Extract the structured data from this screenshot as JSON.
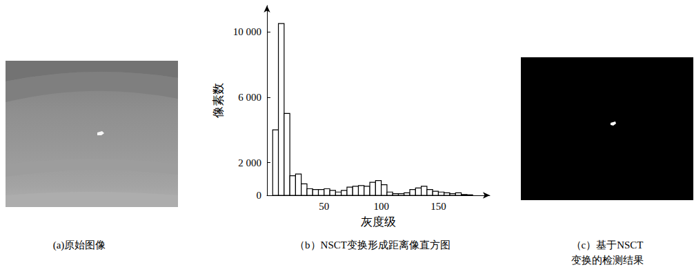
{
  "chart_data": {
    "type": "histogram",
    "xlabel": "灰度级",
    "ylabel": "像素数",
    "bins": [
      5,
      10,
      15,
      20,
      25,
      30,
      35,
      40,
      45,
      50,
      55,
      60,
      65,
      70,
      75,
      80,
      85,
      90,
      95,
      100,
      105,
      110,
      115,
      120,
      125,
      130,
      135,
      140,
      145,
      150,
      155,
      160,
      165,
      170,
      175,
      180
    ],
    "counts": [
      4000,
      10500,
      5000,
      1200,
      1300,
      700,
      400,
      350,
      350,
      400,
      300,
      200,
      300,
      500,
      550,
      600,
      550,
      800,
      900,
      650,
      200,
      100,
      100,
      150,
      350,
      450,
      550,
      350,
      250,
      200,
      150,
      100,
      150,
      50,
      30
    ],
    "color": "#000000",
    "xlim": [
      0,
      195
    ],
    "xticks": [
      50,
      100,
      150
    ],
    "ylim": [
      0,
      11600
    ],
    "yticks": [
      0,
      {
        "value": 2000,
        "label": "2 000"
      },
      {
        "value": 6000,
        "label": "6 000"
      },
      {
        "value": 10000,
        "label": "10 000"
      }
    ],
    "grid": false
  },
  "panels": {
    "a": {
      "caption": "(a)原始图像"
    },
    "b": {
      "caption": "（b）NSCT变换形成距离像直方图"
    },
    "c": {
      "caption": [
        "（c）基于NSCT",
        "变换的检测结果"
      ]
    }
  }
}
